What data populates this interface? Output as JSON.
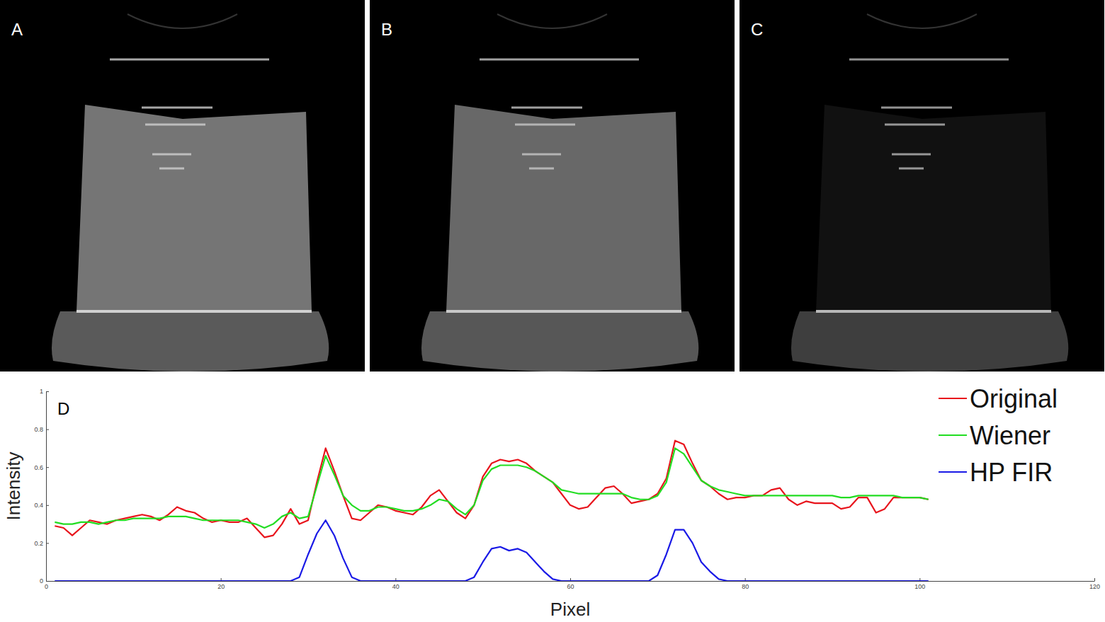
{
  "panels": [
    {
      "label": "A"
    },
    {
      "label": "B"
    },
    {
      "label": "C"
    }
  ],
  "chart_data": {
    "type": "line",
    "title": "D",
    "x_label": "Pixel",
    "y_label": "Intensity",
    "xlim": [
      0,
      120
    ],
    "xticks": [
      0,
      20,
      40,
      60,
      80,
      100,
      120
    ],
    "ylim": [
      0,
      1
    ],
    "yticks": [
      0,
      0.2,
      0.4,
      0.6,
      0.8,
      1
    ],
    "legend": "upper right",
    "grid": false,
    "x": [
      1,
      2,
      3,
      4,
      5,
      6,
      7,
      8,
      9,
      10,
      11,
      12,
      13,
      14,
      15,
      16,
      17,
      18,
      19,
      20,
      21,
      22,
      23,
      24,
      25,
      26,
      27,
      28,
      29,
      30,
      31,
      32,
      33,
      34,
      35,
      36,
      37,
      38,
      39,
      40,
      41,
      42,
      43,
      44,
      45,
      46,
      47,
      48,
      49,
      50,
      51,
      52,
      53,
      54,
      55,
      56,
      57,
      58,
      59,
      60,
      61,
      62,
      63,
      64,
      65,
      66,
      67,
      68,
      69,
      70,
      71,
      72,
      73,
      74,
      75,
      76,
      77,
      78,
      79,
      80,
      81,
      82,
      83,
      84,
      85,
      86,
      87,
      88,
      89,
      90,
      91,
      92,
      93,
      94,
      95,
      96,
      97,
      98,
      99,
      100,
      101
    ],
    "series": [
      {
        "name": "Original",
        "color": "#e8141c",
        "values": [
          0.29,
          0.28,
          0.24,
          0.28,
          0.32,
          0.31,
          0.3,
          0.32,
          0.33,
          0.34,
          0.35,
          0.34,
          0.32,
          0.35,
          0.39,
          0.37,
          0.36,
          0.33,
          0.31,
          0.32,
          0.31,
          0.31,
          0.33,
          0.28,
          0.23,
          0.24,
          0.3,
          0.38,
          0.3,
          0.32,
          0.52,
          0.7,
          0.58,
          0.45,
          0.33,
          0.32,
          0.36,
          0.4,
          0.39,
          0.37,
          0.36,
          0.35,
          0.39,
          0.45,
          0.48,
          0.42,
          0.36,
          0.33,
          0.4,
          0.55,
          0.62,
          0.64,
          0.63,
          0.64,
          0.62,
          0.58,
          0.55,
          0.52,
          0.46,
          0.4,
          0.38,
          0.39,
          0.44,
          0.49,
          0.5,
          0.46,
          0.41,
          0.42,
          0.43,
          0.46,
          0.54,
          0.74,
          0.72,
          0.62,
          0.53,
          0.5,
          0.46,
          0.43,
          0.44,
          0.44,
          0.45,
          0.45,
          0.48,
          0.49,
          0.43,
          0.4,
          0.42,
          0.41,
          0.41,
          0.41,
          0.38,
          0.39,
          0.44,
          0.44,
          0.36,
          0.38,
          0.44,
          0.44,
          0.44,
          0.44,
          0.43
        ]
      },
      {
        "name": "Wiener",
        "color": "#22dd22",
        "values": [
          0.31,
          0.3,
          0.3,
          0.31,
          0.31,
          0.3,
          0.31,
          0.32,
          0.32,
          0.33,
          0.33,
          0.33,
          0.33,
          0.34,
          0.34,
          0.34,
          0.33,
          0.32,
          0.32,
          0.32,
          0.32,
          0.32,
          0.31,
          0.3,
          0.28,
          0.3,
          0.34,
          0.36,
          0.33,
          0.34,
          0.5,
          0.66,
          0.56,
          0.45,
          0.4,
          0.37,
          0.37,
          0.39,
          0.39,
          0.38,
          0.37,
          0.37,
          0.38,
          0.4,
          0.43,
          0.42,
          0.38,
          0.35,
          0.4,
          0.53,
          0.59,
          0.61,
          0.61,
          0.61,
          0.6,
          0.58,
          0.55,
          0.52,
          0.48,
          0.47,
          0.46,
          0.46,
          0.46,
          0.46,
          0.46,
          0.46,
          0.44,
          0.43,
          0.43,
          0.45,
          0.52,
          0.7,
          0.67,
          0.6,
          0.53,
          0.5,
          0.48,
          0.47,
          0.46,
          0.45,
          0.45,
          0.45,
          0.45,
          0.45,
          0.45,
          0.45,
          0.45,
          0.45,
          0.45,
          0.45,
          0.44,
          0.44,
          0.45,
          0.45,
          0.45,
          0.45,
          0.45,
          0.44,
          0.44,
          0.44,
          0.43
        ]
      },
      {
        "name": "HP FIR",
        "color": "#1a1ae6",
        "values": [
          0,
          0,
          0,
          0,
          0,
          0,
          0,
          0,
          0,
          0,
          0,
          0,
          0,
          0,
          0,
          0,
          0,
          0,
          0,
          0,
          0,
          0,
          0,
          0,
          0,
          0,
          0,
          0,
          0.02,
          0.14,
          0.25,
          0.32,
          0.24,
          0.12,
          0.02,
          0,
          0,
          0,
          0,
          0,
          0,
          0,
          0,
          0,
          0,
          0,
          0,
          0,
          0.02,
          0.1,
          0.17,
          0.18,
          0.16,
          0.17,
          0.15,
          0.1,
          0.05,
          0.01,
          0,
          0,
          0,
          0,
          0,
          0,
          0,
          0,
          0,
          0,
          0,
          0.03,
          0.14,
          0.27,
          0.27,
          0.2,
          0.1,
          0.05,
          0.01,
          0,
          0,
          0,
          0,
          0,
          0,
          0,
          0,
          0,
          0,
          0,
          0,
          0,
          0,
          0,
          0,
          0,
          0,
          0,
          0,
          0,
          0,
          0,
          0
        ]
      }
    ]
  }
}
